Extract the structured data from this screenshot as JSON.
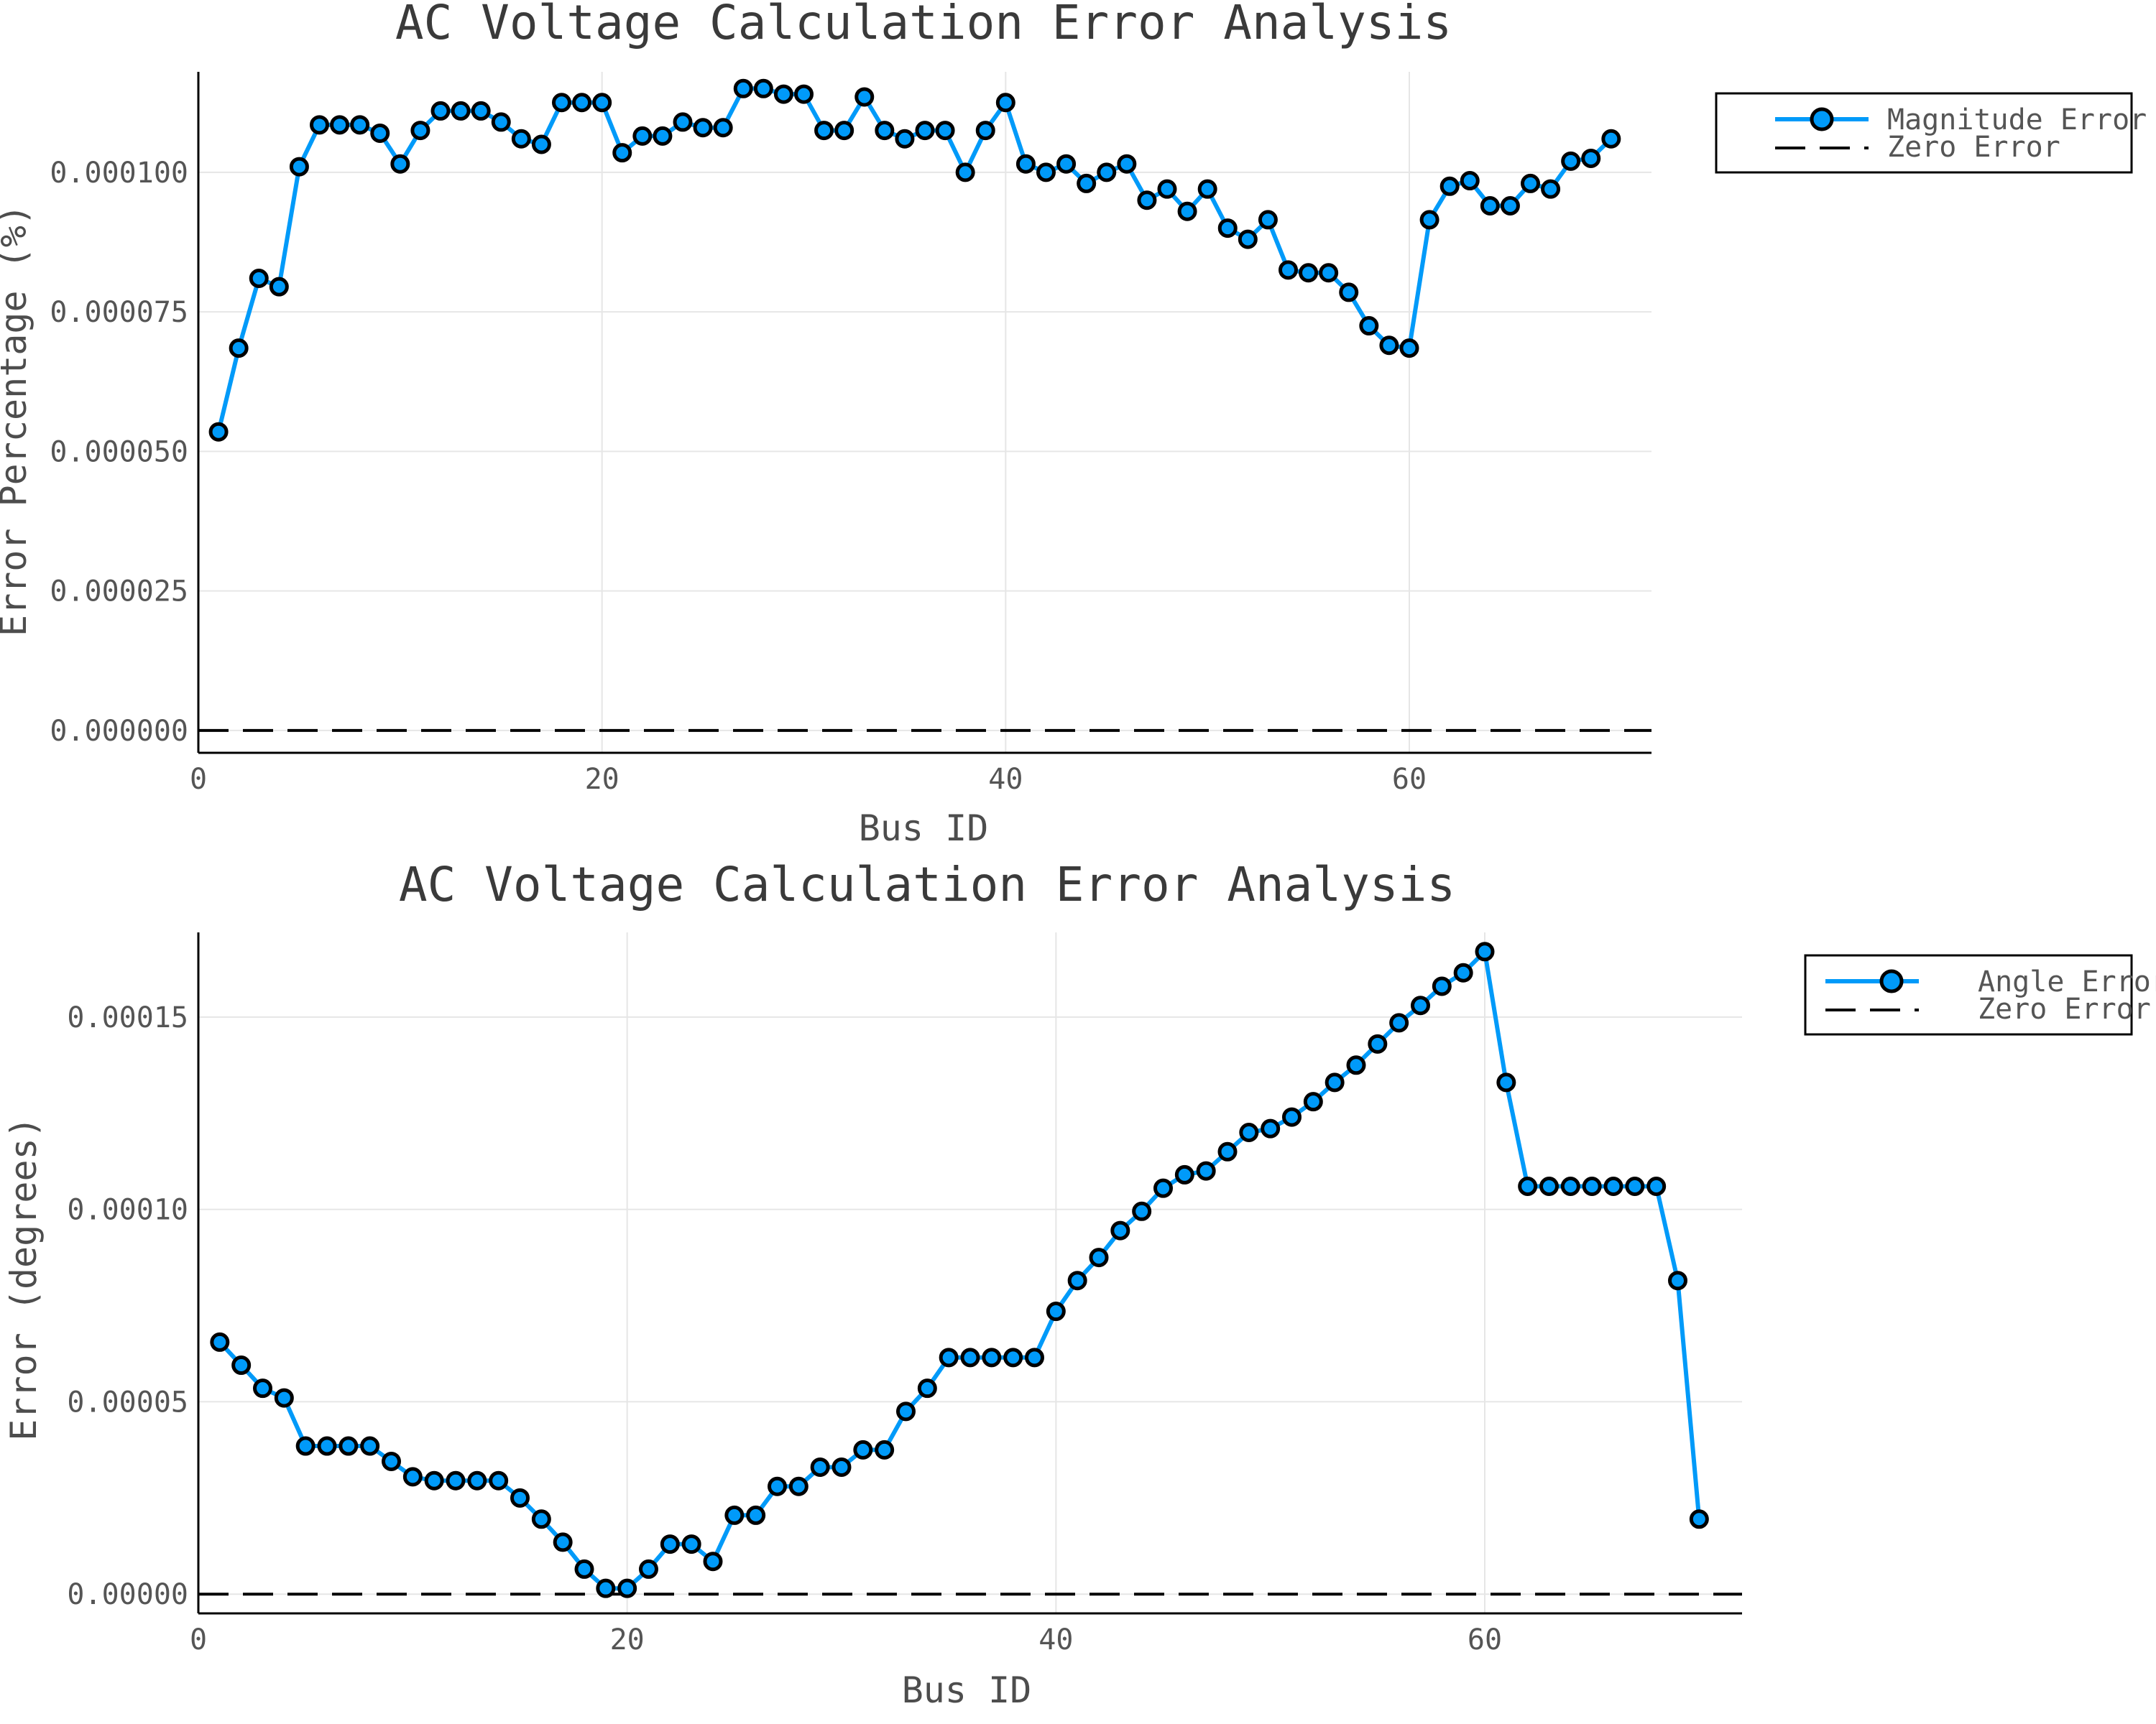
{
  "chart_data": [
    {
      "type": "line",
      "title": "AC Voltage Calculation Error Analysis",
      "xlabel": "Bus ID",
      "ylabel": "Error Percentage (%)",
      "xlim": [
        0,
        72
      ],
      "ylim": [
        -4e-06,
        0.000118
      ],
      "xticks": [
        0,
        20,
        40,
        60
      ],
      "xtick_labels": [
        "0",
        "20",
        "40",
        "60"
      ],
      "yticks": [
        0.0,
        2.5e-05,
        5e-05,
        7.5e-05,
        0.0001
      ],
      "ytick_labels": [
        "0.000000",
        "0.000025",
        "0.000050",
        "0.000075",
        "0.000100"
      ],
      "grid": true,
      "legend_position": "outside-top-right",
      "series": [
        {
          "name": "Magnitude Error",
          "color": "#009af9",
          "marker": "circle",
          "x": [
            1,
            2,
            3,
            4,
            5,
            6,
            7,
            8,
            9,
            10,
            11,
            12,
            13,
            14,
            15,
            16,
            17,
            18,
            19,
            20,
            21,
            22,
            23,
            24,
            25,
            26,
            27,
            28,
            29,
            30,
            31,
            32,
            33,
            34,
            35,
            36,
            37,
            38,
            39,
            40,
            41,
            42,
            43,
            44,
            45,
            46,
            47,
            48,
            49,
            50,
            51,
            52,
            53,
            54,
            55,
            56,
            57,
            58,
            59,
            60,
            61,
            62,
            63,
            64,
            65,
            66,
            67,
            68,
            69,
            70
          ],
          "values": [
            5.35e-05,
            6.85e-05,
            8.1e-05,
            7.95e-05,
            0.000101,
            0.0001085,
            0.0001085,
            0.0001085,
            0.000107,
            0.0001015,
            0.0001075,
            0.000111,
            0.000111,
            0.000111,
            0.000109,
            0.000106,
            0.000105,
            0.0001125,
            0.0001125,
            0.0001125,
            0.0001035,
            0.0001065,
            0.0001065,
            0.000109,
            0.000108,
            0.000108,
            0.000115,
            0.000115,
            0.000114,
            0.000114,
            0.0001075,
            0.0001075,
            0.0001135,
            0.0001075,
            0.000106,
            0.0001075,
            0.0001075,
            0.0001,
            0.0001075,
            0.0001125,
            0.0001015,
            0.0001,
            0.0001015,
            9.8e-05,
            0.0001,
            0.0001015,
            9.5e-05,
            9.7e-05,
            9.3e-05,
            9.7e-05,
            9e-05,
            8.8e-05,
            9.15e-05,
            8.25e-05,
            8.2e-05,
            8.2e-05,
            7.85e-05,
            7.25e-05,
            6.9e-05,
            6.85e-05,
            9.15e-05,
            9.75e-05,
            9.85e-05,
            9.4e-05,
            9.4e-05,
            9.8e-05,
            9.7e-05,
            0.000102,
            0.0001025,
            0.000106
          ]
        },
        {
          "name": "Zero Error",
          "color": "#000000",
          "style": "dashed",
          "constant": 0.0
        }
      ]
    },
    {
      "type": "line",
      "title": "AC Voltage Calculation Error Analysis",
      "xlabel": "Bus ID",
      "ylabel": "Error (degrees)",
      "xlim": [
        0,
        72
      ],
      "ylim": [
        -5e-06,
        0.000172
      ],
      "xticks": [
        0,
        20,
        40,
        60
      ],
      "xtick_labels": [
        "0",
        "20",
        "40",
        "60"
      ],
      "yticks": [
        0.0,
        5e-05,
        0.0001,
        0.00015
      ],
      "ytick_labels": [
        "0.00000",
        "0.00005",
        "0.00010",
        "0.00015"
      ],
      "grid": true,
      "legend_position": "outside-top-right",
      "series": [
        {
          "name": "Angle Error",
          "color": "#009af9",
          "marker": "circle",
          "x": [
            1,
            2,
            3,
            4,
            5,
            6,
            7,
            8,
            9,
            10,
            11,
            12,
            13,
            14,
            15,
            16,
            17,
            18,
            19,
            20,
            21,
            22,
            23,
            24,
            25,
            26,
            27,
            28,
            29,
            30,
            31,
            32,
            33,
            34,
            35,
            36,
            37,
            38,
            39,
            40,
            41,
            42,
            43,
            44,
            45,
            46,
            47,
            48,
            49,
            50,
            51,
            52,
            53,
            54,
            55,
            56,
            57,
            58,
            59,
            60,
            61,
            62,
            63,
            64,
            65,
            66,
            67,
            68,
            69,
            70
          ],
          "values": [
            6.55e-05,
            5.95e-05,
            5.35e-05,
            5.1e-05,
            3.85e-05,
            3.85e-05,
            3.85e-05,
            3.85e-05,
            3.45e-05,
            3.05e-05,
            2.95e-05,
            2.95e-05,
            2.95e-05,
            2.95e-05,
            2.5e-05,
            1.95e-05,
            1.35e-05,
            6.5e-06,
            1.5e-06,
            1.5e-06,
            6.5e-06,
            1.3e-05,
            1.3e-05,
            8.5e-06,
            2.05e-05,
            2.05e-05,
            2.8e-05,
            2.8e-05,
            3.3e-05,
            3.3e-05,
            3.75e-05,
            3.75e-05,
            4.75e-05,
            5.35e-05,
            6.15e-05,
            6.15e-05,
            6.15e-05,
            6.15e-05,
            6.15e-05,
            7.35e-05,
            8.15e-05,
            8.75e-05,
            9.45e-05,
            9.95e-05,
            0.0001055,
            0.000109,
            0.00011,
            0.000115,
            0.00012,
            0.000121,
            0.000124,
            0.000128,
            0.000133,
            0.0001375,
            0.000143,
            0.0001485,
            0.000153,
            0.000158,
            0.0001615,
            0.000167,
            0.000133,
            0.000106,
            0.000106,
            0.000106,
            0.000106,
            0.000106,
            0.000106,
            0.000106,
            8.15e-05,
            1.95e-05
          ]
        },
        {
          "name": "Zero Error",
          "color": "#000000",
          "style": "dashed",
          "constant": 0.0
        }
      ]
    }
  ]
}
